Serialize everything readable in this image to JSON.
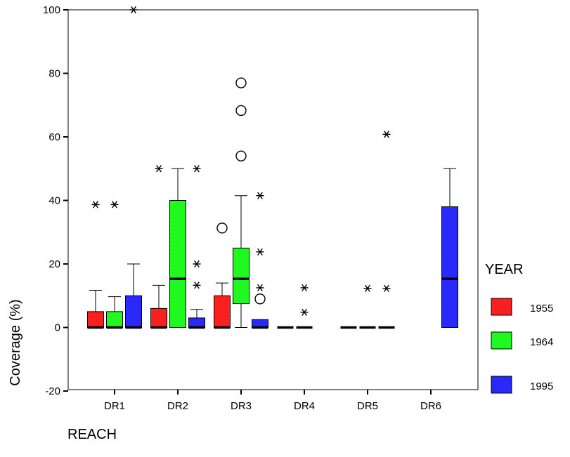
{
  "chart_data": {
    "type": "boxplot",
    "title": "",
    "xlabel": "REACH",
    "ylabel": "Coverage (%)",
    "ylim": [
      -20,
      100
    ],
    "yticks": [
      -20,
      0,
      20,
      40,
      60,
      80,
      100
    ],
    "categories": [
      "DR1",
      "DR2",
      "DR3",
      "DR4",
      "DR5",
      "DR6"
    ],
    "legend": {
      "title": "YEAR",
      "placement": "right"
    },
    "series": [
      {
        "name": "1955",
        "color": "#ff2020",
        "boxes": [
          {
            "category": "DR1",
            "q1": 0,
            "median": 0,
            "q3": 5,
            "whisker_low": 0,
            "whisker_high": 11.7,
            "outliers": [],
            "extremes": [
              38.7
            ]
          },
          {
            "category": "DR2",
            "q1": 0,
            "median": 0,
            "q3": 6,
            "whisker_low": 0,
            "whisker_high": 13.3,
            "outliers": [],
            "extremes": [
              50
            ]
          },
          {
            "category": "DR3",
            "q1": 0,
            "median": 0,
            "q3": 10,
            "whisker_low": 0,
            "whisker_high": 14,
            "outliers": [
              31.3
            ],
            "extremes": []
          },
          {
            "category": "DR4",
            "q1": 0,
            "median": 0,
            "q3": 0,
            "whisker_low": 0,
            "whisker_high": 0,
            "outliers": [],
            "extremes": []
          },
          {
            "category": "DR5",
            "q1": 0,
            "median": 0,
            "q3": 0,
            "whisker_low": 0,
            "whisker_high": 0,
            "outliers": [],
            "extremes": []
          }
        ]
      },
      {
        "name": "1964",
        "color": "#20ff20",
        "boxes": [
          {
            "category": "DR1",
            "q1": 0,
            "median": 0,
            "q3": 5,
            "whisker_low": 0,
            "whisker_high": 9.7,
            "outliers": [],
            "extremes": [
              38.7
            ]
          },
          {
            "category": "DR2",
            "q1": 0,
            "median": 15.3,
            "q3": 40,
            "whisker_low": 0,
            "whisker_high": 50,
            "outliers": [],
            "extremes": []
          },
          {
            "category": "DR3",
            "q1": 7.5,
            "median": 15.3,
            "q3": 25,
            "whisker_low": 0,
            "whisker_high": 41.5,
            "outliers": [
              54,
              68.3,
              77
            ],
            "extremes": []
          },
          {
            "category": "DR4",
            "q1": 0,
            "median": 0,
            "q3": 0,
            "whisker_low": 0,
            "whisker_high": 0,
            "outliers": [],
            "extremes": [
              12.5,
              4.8
            ]
          },
          {
            "category": "DR5",
            "q1": 0,
            "median": 0,
            "q3": 0,
            "whisker_low": 0,
            "whisker_high": 0,
            "outliers": [],
            "extremes": [
              12.3
            ]
          }
        ]
      },
      {
        "name": "1995",
        "color": "#2a2aff",
        "boxes": [
          {
            "category": "DR1",
            "q1": 0,
            "median": 0,
            "q3": 10,
            "whisker_low": 0,
            "whisker_high": 20,
            "outliers": [],
            "extremes": [
              100
            ]
          },
          {
            "category": "DR2",
            "q1": 0,
            "median": 0,
            "q3": 3,
            "whisker_low": 0,
            "whisker_high": 5.7,
            "outliers": [],
            "extremes": [
              50,
              20,
              13.3
            ]
          },
          {
            "category": "DR3",
            "q1": 0,
            "median": 0,
            "q3": 2.5,
            "whisker_low": 0,
            "whisker_high": 2.5,
            "outliers": [
              9
            ],
            "extremes": [
              41.5,
              23.8,
              12.5
            ]
          },
          {
            "category": "DR5",
            "q1": 0,
            "median": 0,
            "q3": 0,
            "whisker_low": 0,
            "whisker_high": 0,
            "outliers": [],
            "extremes": [
              60.8,
              12.3
            ]
          },
          {
            "category": "DR6",
            "q1": 0,
            "median": 15.3,
            "q3": 38,
            "whisker_low": 0,
            "whisker_high": 50,
            "outliers": [],
            "extremes": []
          }
        ]
      }
    ]
  }
}
